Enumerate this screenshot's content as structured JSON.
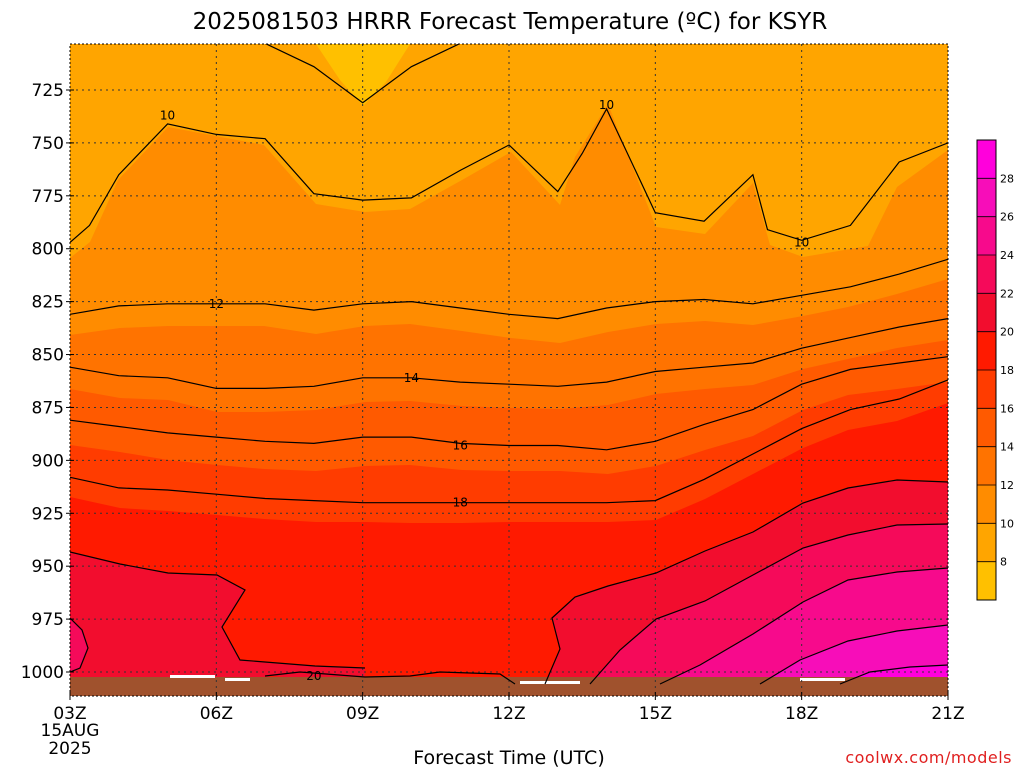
{
  "chart_data": {
    "type": "heatmap",
    "title": "2025081503 HRRR Forecast Temperature (ºC) for KSYR",
    "xlabel": "Forecast Time (UTC)",
    "ylabel": "",
    "x_ticks": [
      "03Z",
      "06Z",
      "09Z",
      "12Z",
      "15Z",
      "18Z",
      "21Z"
    ],
    "x_date_lines": [
      "15AUG",
      "2025"
    ],
    "y_ticks": [
      725,
      750,
      775,
      800,
      825,
      850,
      875,
      900,
      925,
      950,
      975,
      1000
    ],
    "ylim": [
      1012,
      703
    ],
    "xlim_hours": [
      3,
      21
    ],
    "y_axis": "pressure (hPa), inverted",
    "grid": true,
    "colorbar": {
      "placement": "right",
      "ticks": [
        8,
        10,
        12,
        14,
        16,
        18,
        20,
        22,
        24,
        26,
        28
      ],
      "colors": [
        "#ffc000",
        "#ffa500",
        "#ff8c00",
        "#ff7300",
        "#ff5a00",
        "#ff3c00",
        "#ff1a00",
        "#f20d2e",
        "#f50a5a",
        "#f70a8c",
        "#f70db9",
        "#ff00dc"
      ]
    },
    "contour_labels": [
      {
        "value": "10",
        "hour": 5.0,
        "p": 737
      },
      {
        "value": "10",
        "hour": 14.0,
        "p": 732
      },
      {
        "value": "10",
        "hour": 18.0,
        "p": 797
      },
      {
        "value": "12",
        "hour": 6.0,
        "p": 826
      },
      {
        "value": "14",
        "hour": 10.0,
        "p": 861
      },
      {
        "value": "16",
        "hour": 11.0,
        "p": 893
      },
      {
        "value": "18",
        "hour": 11.0,
        "p": 920
      },
      {
        "value": "20",
        "hour": 8.0,
        "p": 1002
      }
    ],
    "series": [
      {
        "name": "9",
        "hour": [
          7.0,
          8.0,
          9.0,
          10.0,
          11.0
        ],
        "p": [
          703,
          714,
          731,
          714,
          703
        ]
      },
      {
        "name": "10",
        "hour": [
          3,
          3.4,
          4,
          5,
          6,
          7,
          8,
          9,
          10,
          11,
          12,
          13,
          13.5,
          14,
          15,
          16,
          17,
          17.3,
          18,
          19,
          20,
          21
        ],
        "p": [
          797,
          789,
          765,
          741,
          746,
          748,
          774,
          777,
          776,
          763,
          751,
          773,
          755,
          734,
          783,
          787,
          765,
          791,
          796,
          789,
          759,
          750
        ]
      },
      {
        "name": "12",
        "hour": [
          3,
          4,
          5,
          6,
          7,
          8,
          9,
          10,
          11,
          12,
          13,
          14,
          15,
          16,
          17,
          18,
          19,
          20,
          21
        ],
        "p": [
          831,
          827,
          826,
          826,
          826,
          829,
          826,
          825,
          828,
          831,
          833,
          828,
          825,
          824,
          826,
          822,
          818,
          812,
          805
        ]
      },
      {
        "name": "14",
        "hour": [
          3,
          4,
          5,
          6,
          7,
          8,
          9,
          10,
          11,
          12,
          13,
          14,
          15,
          16,
          17,
          18,
          19,
          20,
          21
        ],
        "p": [
          856,
          860,
          861,
          866,
          866,
          865,
          861,
          861,
          863,
          864,
          865,
          863,
          858,
          856,
          854,
          847,
          842,
          837,
          833
        ]
      },
      {
        "name": "16",
        "hour": [
          3,
          4,
          5,
          6,
          7,
          8,
          9,
          10,
          11,
          12,
          13,
          14,
          15,
          16,
          17,
          18,
          19,
          20,
          21
        ],
        "p": [
          881,
          884,
          887,
          889,
          891,
          892,
          889,
          889,
          892,
          893,
          893,
          895,
          891,
          883,
          876,
          864,
          857,
          854,
          851
        ]
      },
      {
        "name": "18",
        "hour": [
          3,
          4,
          5,
          6,
          7,
          8,
          9,
          10,
          11,
          12,
          13,
          14,
          15,
          16,
          17,
          18,
          19,
          20,
          21
        ],
        "p": [
          908,
          913,
          914,
          916,
          918,
          919,
          920,
          920,
          920,
          920,
          920,
          920,
          919,
          909,
          897,
          885,
          876,
          871,
          862
        ]
      }
    ]
  }
}
